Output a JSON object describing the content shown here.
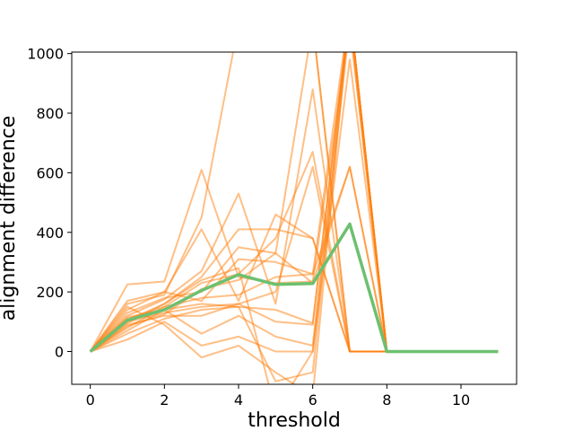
{
  "chart_data": {
    "type": "line",
    "title": "",
    "xlabel": "threshold",
    "ylabel": "alignment difference",
    "xlim": [
      -0.5,
      11.5
    ],
    "ylim": [
      -110,
      1005
    ],
    "xticks": [
      0,
      2,
      4,
      6,
      8,
      10
    ],
    "yticks": [
      0,
      200,
      400,
      600,
      800,
      1000
    ],
    "grid": false,
    "legend": "none",
    "colors": {
      "individual": "#ff7f0e",
      "mean": "#6cc070",
      "axes": "#000000"
    },
    "x": [
      0,
      1,
      2,
      3,
      4,
      5,
      6,
      7,
      8,
      9,
      10,
      11
    ],
    "series": [
      {
        "role": "individual",
        "values": [
          0,
          225,
          235,
          610,
          250,
          230,
          235,
          1100,
          0,
          0,
          0,
          0
        ]
      },
      {
        "role": "individual",
        "values": [
          0,
          160,
          190,
          450,
          1100,
          1200,
          1100,
          0,
          0,
          0,
          0,
          0
        ]
      },
      {
        "role": "individual",
        "values": [
          0,
          140,
          200,
          410,
          170,
          460,
          380,
          0,
          0,
          0,
          0,
          0
        ]
      },
      {
        "role": "individual",
        "values": [
          0,
          120,
          175,
          270,
          530,
          160,
          880,
          0,
          0,
          0,
          0,
          0
        ]
      },
      {
        "role": "individual",
        "values": [
          0,
          95,
          160,
          250,
          410,
          410,
          380,
          0,
          0,
          0,
          0,
          0
        ]
      },
      {
        "role": "individual",
        "values": [
          0,
          110,
          150,
          230,
          260,
          380,
          670,
          0,
          0,
          0,
          0,
          0
        ]
      },
      {
        "role": "individual",
        "values": [
          0,
          130,
          180,
          200,
          350,
          330,
          230,
          620,
          0,
          0,
          0,
          0
        ]
      },
      {
        "role": "individual",
        "values": [
          0,
          80,
          150,
          180,
          190,
          250,
          260,
          620,
          0,
          0,
          0,
          0
        ]
      },
      {
        "role": "individual",
        "values": [
          0,
          170,
          200,
          170,
          310,
          300,
          260,
          1150,
          0,
          0,
          0,
          0
        ]
      },
      {
        "role": "individual",
        "values": [
          0,
          100,
          130,
          150,
          160,
          200,
          620,
          0,
          0,
          0,
          0,
          0
        ]
      },
      {
        "role": "individual",
        "values": [
          0,
          60,
          110,
          140,
          150,
          140,
          95,
          1150,
          0,
          0,
          0,
          0
        ]
      },
      {
        "role": "individual",
        "values": [
          0,
          90,
          120,
          120,
          160,
          100,
          90,
          1150,
          0,
          0,
          0,
          0
        ]
      },
      {
        "role": "individual",
        "values": [
          0,
          70,
          140,
          60,
          120,
          50,
          20,
          1150,
          0,
          0,
          0,
          0
        ]
      },
      {
        "role": "individual",
        "values": [
          0,
          40,
          100,
          20,
          50,
          0,
          0,
          980,
          0,
          0,
          0,
          0
        ]
      },
      {
        "role": "individual",
        "values": [
          0,
          150,
          90,
          -20,
          20,
          -70,
          -150,
          1150,
          0,
          0,
          0,
          0
        ]
      },
      {
        "role": "individual",
        "values": [
          0,
          105,
          160,
          240,
          280,
          -200,
          0,
          1100,
          0,
          0,
          0,
          0
        ]
      },
      {
        "role": "individual",
        "values": [
          0,
          115,
          140,
          160,
          150,
          -100,
          -70,
          1150,
          0,
          0,
          0,
          0
        ]
      },
      {
        "role": "individual",
        "values": [
          0,
          85,
          125,
          210,
          240,
          330,
          1100,
          0,
          0,
          0,
          0,
          0
        ]
      },
      {
        "role": "mean",
        "values": [
          0,
          105,
          140,
          205,
          258,
          225,
          228,
          428,
          0,
          0,
          0,
          0
        ]
      }
    ]
  }
}
